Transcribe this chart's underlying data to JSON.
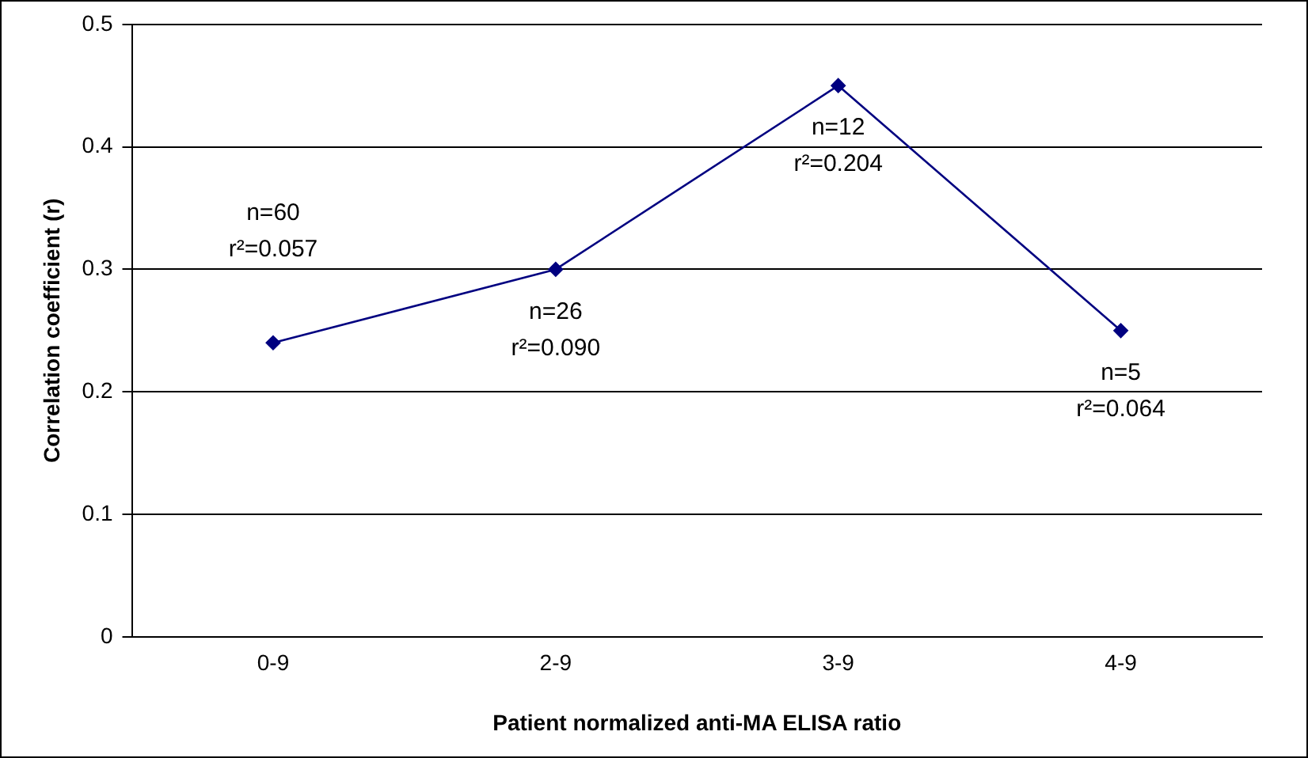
{
  "chart_data": {
    "type": "line",
    "xlabel": "Patient normalized anti-MA ELISA ratio",
    "ylabel": "Correlation coefficient (r)",
    "categories": [
      "0-9",
      "2-9",
      "3-9",
      "4-9"
    ],
    "series": [
      {
        "color": "#000080",
        "values": [
          0.24,
          0.3,
          0.45,
          0.25
        ]
      }
    ],
    "ylim": [
      0,
      0.5
    ],
    "yticks": [
      0,
      0.1,
      0.2,
      0.3,
      0.4,
      0.5
    ],
    "grid": "y",
    "legend": false,
    "marker": "diamond",
    "line_style": "solid",
    "annotations": [
      "n=60",
      "r²=0.057",
      "n=26",
      "r²=0.090",
      "n=12",
      "r²=0.204",
      "n=5",
      "r²=0.064"
    ]
  }
}
